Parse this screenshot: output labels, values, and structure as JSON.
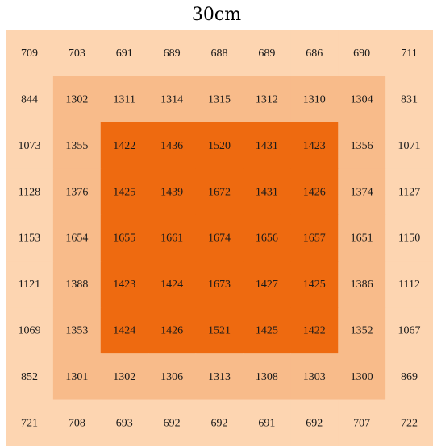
{
  "chart_data": {
    "type": "heatmap",
    "title": "30cm",
    "rows": [
      [
        709,
        703,
        691,
        689,
        688,
        689,
        686,
        690,
        711
      ],
      [
        844,
        1302,
        1311,
        1314,
        1315,
        1312,
        1310,
        1304,
        831
      ],
      [
        1073,
        1355,
        1422,
        1436,
        1520,
        1431,
        1423,
        1356,
        1071
      ],
      [
        1128,
        1376,
        1425,
        1439,
        1672,
        1431,
        1426,
        1374,
        1127
      ],
      [
        1153,
        1654,
        1655,
        1661,
        1674,
        1656,
        1657,
        1651,
        1150
      ],
      [
        1121,
        1388,
        1423,
        1424,
        1673,
        1427,
        1425,
        1386,
        1112
      ],
      [
        1069,
        1353,
        1424,
        1426,
        1521,
        1425,
        1422,
        1352,
        1067
      ],
      [
        852,
        1301,
        1302,
        1306,
        1313,
        1308,
        1303,
        1300,
        869
      ],
      [
        721,
        708,
        693,
        692,
        692,
        691,
        692,
        707,
        722
      ]
    ],
    "zone_colors": {
      "outer": "#FDD5B1",
      "middle": "#F8BB8A",
      "inner": "#EE6A10"
    }
  }
}
